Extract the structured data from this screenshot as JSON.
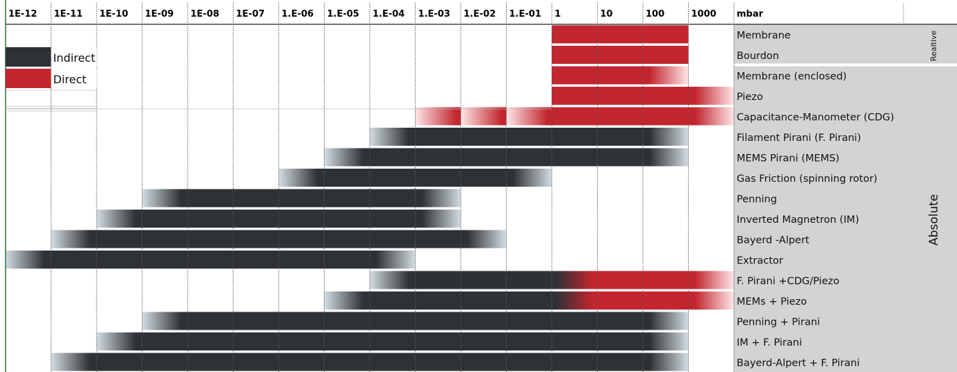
{
  "chart_data": {
    "type": "table",
    "columns": [
      "1E-12",
      "1E-11",
      "1E-10",
      "1E-09",
      "1E-08",
      "1E-07",
      "1.E-06",
      "1.E-05",
      "1.E-04",
      "1.E-03",
      "1.E-02",
      "1.E-01",
      "1",
      "10",
      "100",
      "1000"
    ],
    "unit_header": "mbar",
    "legend": [
      {
        "name": "Indirect",
        "color": "#2e3236"
      },
      {
        "name": "Direct",
        "color": "#c2262e"
      }
    ],
    "groups": [
      {
        "label": "Realtive",
        "rows": [
          0,
          1
        ]
      },
      {
        "label": "Absolute",
        "rows": [
          2,
          16
        ]
      }
    ],
    "colors": {
      "indirect": "#2e3236",
      "direct": "#c2262e",
      "fade_indirect": "#d4dde2",
      "fade_direct": "#ffe6e8",
      "group_bg": "#d3d3d3",
      "grid": "#555555"
    },
    "sensors": [
      {
        "name": "Membrane",
        "segments": [
          {
            "from": 12,
            "to": 15,
            "kind": "direct"
          }
        ]
      },
      {
        "name": "Bourdon",
        "segments": [
          {
            "from": 12,
            "to": 15,
            "kind": "direct"
          }
        ]
      },
      {
        "name": "Membrane (enclosed)",
        "segments": [
          {
            "from": 12,
            "to": 14,
            "kind": "direct"
          },
          {
            "from": 14,
            "to": 15,
            "kind": "direct",
            "fade": "right"
          }
        ]
      },
      {
        "name": "Piezo",
        "segments": [
          {
            "from": 12,
            "to": 15,
            "kind": "direct"
          },
          {
            "from": 15,
            "to": 16,
            "kind": "direct",
            "fade": "right"
          }
        ]
      },
      {
        "name": "Capacitance-Manometer (CDG)",
        "segments": [
          {
            "from": 9,
            "to": 10,
            "kind": "direct",
            "fade": "left"
          },
          {
            "from": 10,
            "to": 11,
            "kind": "direct",
            "fade": "left"
          },
          {
            "from": 11,
            "to": 12,
            "kind": "direct",
            "fade": "left"
          },
          {
            "from": 12,
            "to": 15,
            "kind": "direct"
          },
          {
            "from": 15,
            "to": 16,
            "kind": "direct",
            "fade": "right"
          }
        ]
      },
      {
        "name": "Filament Pirani (F. Pirani)",
        "segments": [
          {
            "from": 8,
            "to": 9,
            "kind": "indirect",
            "fade": "left"
          },
          {
            "from": 9,
            "to": 14,
            "kind": "indirect"
          },
          {
            "from": 14,
            "to": 15,
            "kind": "indirect",
            "fade": "right"
          }
        ]
      },
      {
        "name": "MEMS Pirani (MEMS)",
        "segments": [
          {
            "from": 7,
            "to": 8,
            "kind": "indirect",
            "fade": "left"
          },
          {
            "from": 8,
            "to": 14,
            "kind": "indirect"
          },
          {
            "from": 14,
            "to": 15,
            "kind": "indirect",
            "fade": "right"
          }
        ]
      },
      {
        "name": "Gas Friction (spinning rotor)",
        "segments": [
          {
            "from": 6,
            "to": 7,
            "kind": "indirect",
            "fade": "left"
          },
          {
            "from": 7,
            "to": 11,
            "kind": "indirect"
          },
          {
            "from": 11,
            "to": 12,
            "kind": "indirect",
            "fade": "right"
          }
        ]
      },
      {
        "name": "Penning",
        "segments": [
          {
            "from": 3,
            "to": 4,
            "kind": "indirect",
            "fade": "left"
          },
          {
            "from": 4,
            "to": 9,
            "kind": "indirect"
          },
          {
            "from": 9,
            "to": 10,
            "kind": "indirect",
            "fade": "right"
          }
        ]
      },
      {
        "name": "Inverted Magnetron (IM)",
        "segments": [
          {
            "from": 2,
            "to": 3,
            "kind": "indirect",
            "fade": "left"
          },
          {
            "from": 3,
            "to": 9,
            "kind": "indirect"
          },
          {
            "from": 9,
            "to": 10,
            "kind": "indirect",
            "fade": "right"
          }
        ]
      },
      {
        "name": "Bayerd -Alpert",
        "segments": [
          {
            "from": 1,
            "to": 2,
            "kind": "indirect",
            "fade": "left"
          },
          {
            "from": 2,
            "to": 10,
            "kind": "indirect"
          },
          {
            "from": 10,
            "to": 11,
            "kind": "indirect",
            "fade": "right"
          }
        ]
      },
      {
        "name": "Extractor",
        "segments": [
          {
            "from": 0,
            "to": 1,
            "kind": "indirect",
            "fade": "left"
          },
          {
            "from": 1,
            "to": 8,
            "kind": "indirect"
          },
          {
            "from": 8,
            "to": 9,
            "kind": "indirect",
            "fade": "right"
          }
        ]
      },
      {
        "name": "F. Pirani +CDG/Piezo",
        "segments": [
          {
            "from": 8,
            "to": 9,
            "kind": "indirect",
            "fade": "left"
          },
          {
            "from": 9,
            "to": 12,
            "kind": "indirect"
          },
          {
            "from": 12,
            "to": 13,
            "kind": "mix"
          },
          {
            "from": 13,
            "to": 15,
            "kind": "direct"
          },
          {
            "from": 15,
            "to": 16,
            "kind": "direct",
            "fade": "right"
          }
        ]
      },
      {
        "name": "MEMs  + Piezo",
        "segments": [
          {
            "from": 7,
            "to": 8,
            "kind": "indirect",
            "fade": "left"
          },
          {
            "from": 8,
            "to": 12,
            "kind": "indirect"
          },
          {
            "from": 12,
            "to": 13,
            "kind": "mix"
          },
          {
            "from": 13,
            "to": 15,
            "kind": "direct"
          },
          {
            "from": 15,
            "to": 16,
            "kind": "direct",
            "fade": "right"
          }
        ]
      },
      {
        "name": "Penning + Pirani",
        "segments": [
          {
            "from": 3,
            "to": 4,
            "kind": "indirect",
            "fade": "left"
          },
          {
            "from": 4,
            "to": 14,
            "kind": "indirect"
          },
          {
            "from": 14,
            "to": 15,
            "kind": "indirect",
            "fade": "right"
          }
        ]
      },
      {
        "name": "IM + F. Pirani",
        "segments": [
          {
            "from": 2,
            "to": 3,
            "kind": "indirect",
            "fade": "left"
          },
          {
            "from": 3,
            "to": 14,
            "kind": "indirect"
          },
          {
            "from": 14,
            "to": 15,
            "kind": "indirect",
            "fade": "right"
          }
        ]
      },
      {
        "name": "Bayerd-Alpert + F. Pirani",
        "segments": [
          {
            "from": 1,
            "to": 2,
            "kind": "indirect",
            "fade": "left"
          },
          {
            "from": 2,
            "to": 14,
            "kind": "indirect"
          },
          {
            "from": 14,
            "to": 15,
            "kind": "indirect",
            "fade": "right"
          }
        ]
      }
    ]
  }
}
